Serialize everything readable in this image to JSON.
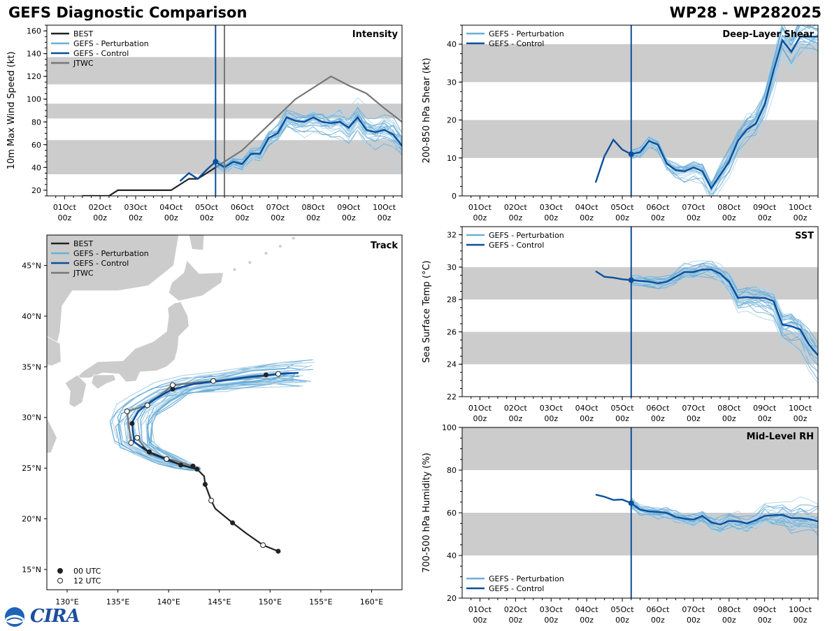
{
  "title_left": "GEFS Diagnostic Comparison",
  "title_right": "WP28 - WP282025",
  "logo_text": "CIRA",
  "colors": {
    "best": "#222222",
    "perturbation": "#6baed6",
    "perturbation_light": "#b3d4ea",
    "control": "#0b4f9c",
    "jtwc": "#777777",
    "band": "#cccccc",
    "land": "#cccccc"
  },
  "time_ticks": [
    "01Oct\n00z",
    "02Oct\n00z",
    "03Oct\n00z",
    "04Oct\n00z",
    "05Oct\n00z",
    "06Oct\n00z",
    "07Oct\n00z",
    "08Oct\n00z",
    "09Oct\n00z",
    "10Oct\n00z"
  ],
  "init_day": 5.25,
  "jtwc_marker_day": 5.5,
  "chart_data": [
    {
      "id": "intensity",
      "type": "line",
      "title": "Intensity",
      "ylabel": "10m Max Wind Speed (kt)",
      "xlim": [
        0.5,
        10.5
      ],
      "ylim": [
        15,
        165
      ],
      "yticks": [
        20,
        40,
        60,
        80,
        100,
        120,
        140,
        160
      ],
      "bands": [
        [
          34,
          64
        ],
        [
          83,
          96
        ],
        [
          113,
          137
        ]
      ],
      "legend": [
        "BEST",
        "GEFS - Perturbation",
        "GEFS - Control",
        "JTWC"
      ],
      "series": [
        {
          "name": "BEST",
          "x": [
            1.5,
            1.75,
            2.0,
            2.25,
            2.5,
            3.0,
            3.5,
            4.0,
            4.5,
            4.75,
            5.0,
            5.25
          ],
          "y": [
            15,
            15,
            15,
            15,
            20,
            20,
            20,
            20,
            30,
            30,
            35,
            40
          ]
        },
        {
          "name": "JTWC",
          "x": [
            5.25,
            5.5,
            6.0,
            6.5,
            7.0,
            7.5,
            8.0,
            8.5,
            9.0,
            9.5,
            10.0,
            10.5
          ],
          "y": [
            40,
            45,
            55,
            70,
            85,
            100,
            110,
            120,
            112,
            105,
            92,
            80
          ]
        },
        {
          "name": "GEFS - Control",
          "x": [
            4.25,
            4.5,
            4.75,
            5.0,
            5.25,
            5.5,
            5.75,
            6.0,
            6.25,
            6.5,
            6.75,
            7.0,
            7.25,
            7.5,
            7.75,
            8.0,
            8.25,
            8.5,
            8.75,
            9.0,
            9.25,
            9.5,
            9.75,
            10.0,
            10.25,
            10.5
          ],
          "y": [
            28,
            35,
            30,
            38,
            45,
            40,
            45,
            43,
            52,
            52,
            66,
            70,
            84,
            81,
            80,
            84,
            80,
            79,
            80,
            75,
            84,
            73,
            71,
            73,
            69,
            59
          ]
        }
      ]
    },
    {
      "id": "shear",
      "type": "line",
      "title": "Deep-Layer Shear",
      "ylabel": "200-850 hPa Shear (kt)",
      "xlim": [
        0.5,
        10.5
      ],
      "ylim": [
        0,
        45
      ],
      "yticks": [
        0,
        10,
        20,
        30,
        40
      ],
      "bands": [
        [
          10,
          20
        ],
        [
          30,
          40
        ]
      ],
      "legend": [
        "GEFS - Perturbation",
        "GEFS - Control"
      ],
      "series": [
        {
          "name": "GEFS - Control",
          "x": [
            4.25,
            4.5,
            4.75,
            5.0,
            5.25,
            5.5,
            5.75,
            6.0,
            6.25,
            6.5,
            6.75,
            7.0,
            7.25,
            7.5,
            7.75,
            8.0,
            8.25,
            8.5,
            8.75,
            9.0,
            9.25,
            9.5,
            9.75,
            10.0,
            10.25,
            10.5
          ],
          "y": [
            3.5,
            10.5,
            14.8,
            12.2,
            11,
            11.5,
            14.5,
            13.5,
            8.5,
            6.8,
            6.5,
            7.5,
            6.5,
            2,
            5.5,
            9,
            14.5,
            17.5,
            19,
            24,
            33,
            41,
            38,
            42,
            42,
            42
          ]
        }
      ]
    },
    {
      "id": "sst",
      "type": "line",
      "title": "SST",
      "ylabel": "Sea Surface Temp (°C)",
      "xlim": [
        0.5,
        10.5
      ],
      "ylim": [
        22,
        32.5
      ],
      "yticks": [
        22,
        24,
        26,
        28,
        30,
        32
      ],
      "bands": [
        [
          24,
          26
        ],
        [
          28,
          30
        ]
      ],
      "legend": [
        "GEFS - Perturbation",
        "GEFS - Control"
      ],
      "series": [
        {
          "name": "GEFS - Control",
          "x": [
            4.25,
            4.5,
            4.75,
            5.0,
            5.25,
            5.5,
            5.75,
            6.0,
            6.25,
            6.5,
            6.75,
            7.0,
            7.25,
            7.5,
            7.75,
            8.0,
            8.25,
            8.5,
            8.75,
            9.0,
            9.25,
            9.5,
            9.75,
            10.0,
            10.25,
            10.5
          ],
          "y": [
            29.75,
            29.4,
            29.35,
            29.25,
            29.2,
            29.15,
            29.1,
            29.0,
            29.1,
            29.4,
            29.7,
            29.7,
            29.85,
            29.85,
            29.6,
            29.1,
            28.1,
            28.15,
            28.1,
            28.1,
            27.9,
            26.45,
            26.35,
            26.15,
            25.2,
            24.55
          ]
        }
      ]
    },
    {
      "id": "rh",
      "type": "line",
      "title": "Mid-Level RH",
      "ylabel": "700-500 hPa Humidity (%)",
      "xlim": [
        0.5,
        10.5
      ],
      "ylim": [
        20,
        100
      ],
      "yticks": [
        20,
        40,
        60,
        80,
        100
      ],
      "bands": [
        [
          40,
          60
        ],
        [
          80,
          100
        ]
      ],
      "legend": [
        "GEFS - Perturbation",
        "GEFS - Control"
      ],
      "series": [
        {
          "name": "GEFS - Control",
          "x": [
            4.25,
            4.5,
            4.75,
            5.0,
            5.25,
            5.5,
            5.75,
            6.0,
            6.25,
            6.5,
            6.75,
            7.0,
            7.25,
            7.5,
            7.75,
            8.0,
            8.25,
            8.5,
            8.75,
            9.0,
            9.25,
            9.5,
            9.75,
            10.0,
            10.25,
            10.5
          ],
          "y": [
            68.5,
            67.5,
            66,
            66.2,
            64.5,
            61.5,
            60.6,
            60.4,
            60,
            58,
            57.2,
            56.8,
            58.5,
            55.5,
            54.5,
            56.2,
            56,
            55,
            56.5,
            58.5,
            58.9,
            59,
            57.5,
            57.5,
            57,
            56
          ]
        }
      ]
    },
    {
      "id": "track",
      "type": "map-track",
      "title": "Track",
      "xlim": [
        128,
        163
      ],
      "ylim": [
        13,
        48
      ],
      "lon_ticks": [
        "130°E",
        "135°E",
        "140°E",
        "145°E",
        "150°E",
        "155°E",
        "160°E"
      ],
      "lat_ticks": [
        "15°N",
        "20°N",
        "25°N",
        "30°N",
        "35°N",
        "40°N",
        "45°N"
      ],
      "legend": [
        "BEST",
        "GEFS - Perturbation",
        "GEFS - Control",
        "JTWC"
      ],
      "marker_legend": [
        "00 UTC",
        "12 UTC"
      ],
      "best_track": [
        [
          150.8,
          16.8
        ],
        [
          149.3,
          17.4
        ],
        [
          147.6,
          18.6
        ],
        [
          146.3,
          19.6
        ],
        [
          144.6,
          21.0
        ],
        [
          144.2,
          21.8
        ],
        [
          143.6,
          23.4
        ],
        [
          143.5,
          24.2
        ],
        [
          142.8,
          24.9
        ],
        [
          141.2,
          25.3
        ],
        [
          139.8,
          25.9
        ],
        [
          138.1,
          26.6
        ],
        [
          137.4,
          27.1
        ]
      ],
      "best_markers": {
        "filled": [
          [
            150.8,
            16.8
          ],
          [
            146.3,
            19.6
          ],
          [
            143.6,
            23.4
          ],
          [
            142.8,
            24.9
          ],
          [
            141.2,
            25.3
          ],
          [
            138.1,
            26.6
          ]
        ],
        "open": [
          [
            149.3,
            17.4
          ],
          [
            144.2,
            21.8
          ]
        ]
      },
      "control_track": [
        [
          143.0,
          24.9
        ],
        [
          142.4,
          25.0
        ],
        [
          141.3,
          25.3
        ],
        [
          139.8,
          25.8
        ],
        [
          138.0,
          26.6
        ],
        [
          136.6,
          27.6
        ],
        [
          136.4,
          29.5
        ],
        [
          137.0,
          30.6
        ],
        [
          138.3,
          31.6
        ],
        [
          140.2,
          32.7
        ],
        [
          142.5,
          33.3
        ],
        [
          145.0,
          33.6
        ],
        [
          148.0,
          34.0
        ],
        [
          150.8,
          34.3
        ],
        [
          152.8,
          34.4
        ]
      ],
      "jtwc_track": [
        [
          142.4,
          25.2
        ],
        [
          140.4,
          25.8
        ],
        [
          139.8,
          25.9
        ],
        [
          138.1,
          26.4
        ],
        [
          136.9,
          28.0
        ],
        [
          136.3,
          27.5
        ],
        [
          135.9,
          30.6
        ],
        [
          137.9,
          31.2
        ],
        [
          140.4,
          33.2
        ],
        [
          144.4,
          33.6
        ],
        [
          149.6,
          34.1
        ],
        [
          150.8,
          34.3
        ]
      ],
      "jtwc_markers": {
        "filled": [
          [
            142.4,
            25.2
          ],
          [
            138.1,
            26.6
          ],
          [
            136.4,
            29.4
          ],
          [
            140.4,
            32.8
          ],
          [
            149.6,
            34.2
          ]
        ],
        "open": [
          [
            139.8,
            25.9
          ],
          [
            136.9,
            28.0
          ],
          [
            136.3,
            27.5
          ],
          [
            135.9,
            30.6
          ],
          [
            137.9,
            31.2
          ],
          [
            140.4,
            33.2
          ],
          [
            144.4,
            33.6
          ],
          [
            150.8,
            34.3
          ]
        ]
      }
    }
  ]
}
